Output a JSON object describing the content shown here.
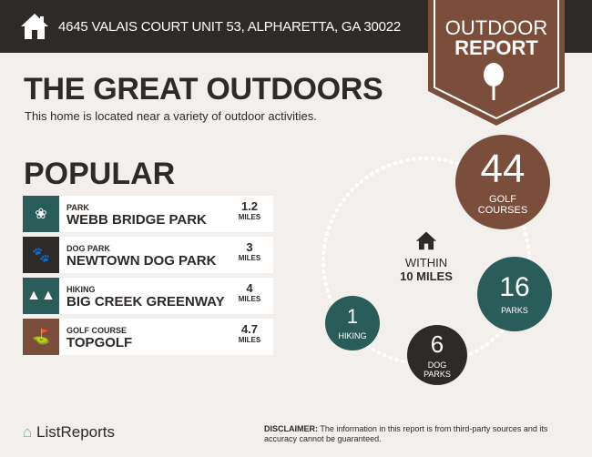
{
  "header": {
    "address": "4645 VALAIS COURT UNIT 53, ALPHARETTA, GA 30022",
    "home_icon": "house-icon"
  },
  "badge": {
    "line1": "OUTDOOR",
    "line2": "REPORT",
    "icon": "tree-icon"
  },
  "title": "THE GREAT OUTDOORS",
  "subtitle": "This home is located near a variety of outdoor activities.",
  "popular": {
    "heading": "POPULAR",
    "items": [
      {
        "category": "PARK",
        "name": "WEBB BRIDGE PARK",
        "distance": "1.2",
        "unit": "MILES",
        "icon": "park-icon",
        "color": "#2a5d5a"
      },
      {
        "category": "DOG PARK",
        "name": "NEWTOWN DOG PARK",
        "distance": "3",
        "unit": "MILES",
        "icon": "paw-icon",
        "color": "#2e2a27"
      },
      {
        "category": "HIKING",
        "name": "BIG CREEK GREENWAY",
        "distance": "4",
        "unit": "MILES",
        "icon": "trees-icon",
        "color": "#2a5d5a"
      },
      {
        "category": "GOLF COURSE",
        "name": "TOPGOLF",
        "distance": "4.7",
        "unit": "MILES",
        "icon": "golf-bag-icon",
        "color": "#7a4e3a"
      }
    ]
  },
  "radius": {
    "line1": "WITHIN",
    "line2": "10 MILES",
    "icon": "house-icon"
  },
  "counts": [
    {
      "value": "44",
      "label1": "GOLF",
      "label2": "COURSES",
      "color": "#7a4e3a"
    },
    {
      "value": "16",
      "label1": "PARKS",
      "label2": "",
      "color": "#2a5d5a"
    },
    {
      "value": "6",
      "label1": "DOG",
      "label2": "PARKS",
      "color": "#2e2a27"
    },
    {
      "value": "1",
      "label1": "HIKING",
      "label2": "",
      "color": "#2a5d5a"
    }
  ],
  "footer": {
    "logo": "ListReports",
    "disclaimer_label": "DISCLAIMER:",
    "disclaimer_text": " The information in this report is from third-party sources and its accuracy cannot be guaranteed."
  }
}
